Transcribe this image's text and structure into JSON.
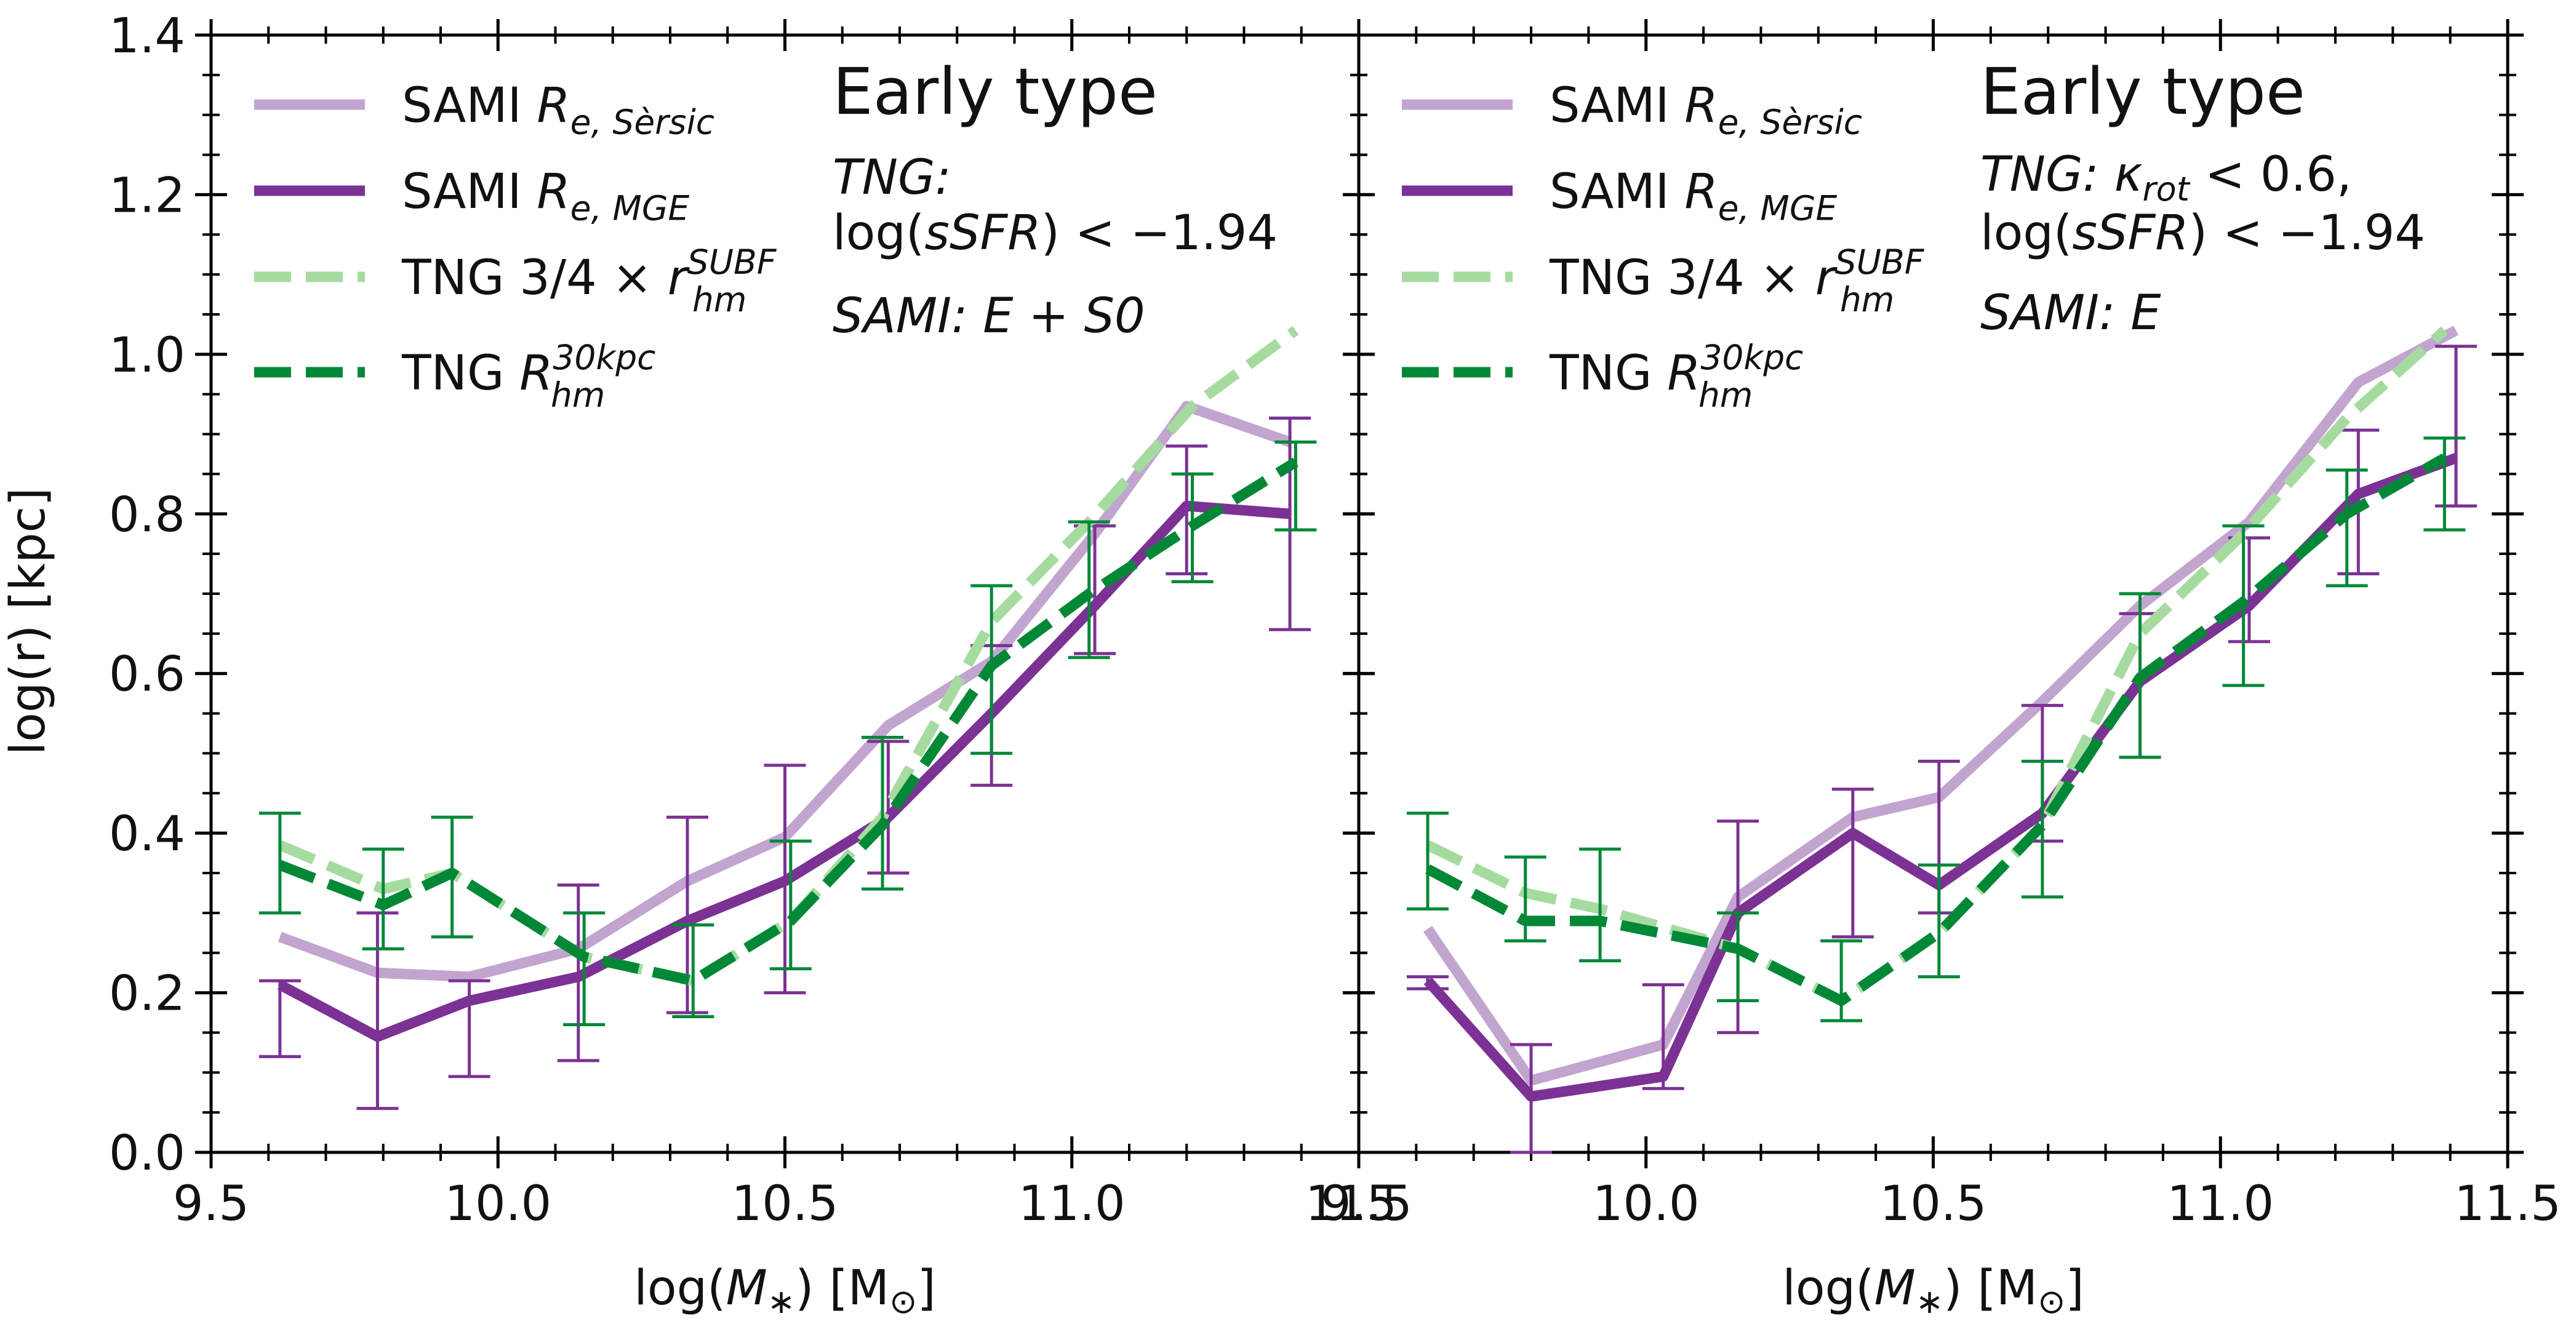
{
  "colors": {
    "sami_sersic": "#c2a5cf",
    "sami_mge": "#7b3294",
    "tng_subf": "#a6dba0",
    "tng_30kpc": "#008837",
    "axis": "#000000"
  },
  "shared": {
    "ylabel": "log(r) [kpc]",
    "xlabel": "log(M∗) [M⊙]",
    "legend": {
      "sami_sersic": "SAMI R_{e, Sèrsic}",
      "sami_mge": "SAMI R_{e, MGE}",
      "tng_subf": "TNG 3/4 × r_{hm}^{SUBF}",
      "tng_30kpc": "TNG R_{hm}^{30kpc}"
    }
  },
  "chart_data": [
    {
      "type": "line",
      "title": "Early type",
      "annotation": [
        "TNG:",
        "log(sSFR) < −1.94",
        "SAMI: E + S0"
      ],
      "xlim": [
        9.5,
        11.5
      ],
      "ylim": [
        0.0,
        1.4
      ],
      "xticks": [
        "9.5",
        "10.0",
        "10.5",
        "11.0",
        "11.5"
      ],
      "yticks": [
        "0.0",
        "0.2",
        "0.4",
        "0.6",
        "0.8",
        "1.0",
        "1.2",
        "1.4"
      ],
      "series": [
        {
          "key": "sami_sersic",
          "name": "SAMI R_{e, Sèrsic}",
          "style": "solid",
          "x": [
            9.62,
            9.79,
            9.95,
            10.14,
            10.33,
            10.5,
            10.68,
            10.86,
            11.04,
            11.2,
            11.38
          ],
          "y": [
            0.27,
            0.225,
            0.22,
            0.255,
            0.34,
            0.395,
            0.535,
            0.615,
            0.775,
            0.935,
            0.89
          ]
        },
        {
          "key": "sami_mge",
          "name": "SAMI R_{e, MGE}",
          "style": "solid",
          "x": [
            9.62,
            9.79,
            9.95,
            10.14,
            10.33,
            10.5,
            10.68,
            10.86,
            11.04,
            11.2,
            11.38
          ],
          "y": [
            0.21,
            0.145,
            0.19,
            0.22,
            0.29,
            0.34,
            0.42,
            0.55,
            0.685,
            0.81,
            0.8
          ],
          "err_low": [
            0.12,
            0.055,
            0.095,
            0.115,
            0.175,
            0.2,
            0.35,
            0.46,
            0.625,
            0.725,
            0.655
          ],
          "err_high": [
            0.215,
            0.3,
            0.215,
            0.335,
            0.42,
            0.485,
            0.515,
            0.635,
            0.785,
            0.885,
            0.92
          ]
        },
        {
          "key": "tng_subf",
          "name": "TNG 3/4 × r_{hm}^{SUBF}",
          "style": "dashed",
          "x": [
            9.62,
            9.8,
            9.92,
            10.15,
            10.34,
            10.51,
            10.67,
            10.86,
            11.03,
            11.21,
            11.39
          ],
          "y": [
            0.385,
            0.33,
            0.35,
            0.245,
            0.215,
            0.29,
            0.42,
            0.665,
            0.79,
            0.935,
            1.03
          ]
        },
        {
          "key": "tng_30kpc",
          "name": "TNG R_{hm}^{30kpc}",
          "style": "dashed",
          "x": [
            9.62,
            9.8,
            9.92,
            10.15,
            10.34,
            10.51,
            10.67,
            10.86,
            11.03,
            11.21,
            11.39
          ],
          "y": [
            0.36,
            0.31,
            0.35,
            0.245,
            0.215,
            0.29,
            0.41,
            0.61,
            0.7,
            0.785,
            0.865
          ],
          "err_low": [
            0.3,
            0.255,
            0.27,
            0.16,
            0.17,
            0.23,
            0.33,
            0.5,
            0.62,
            0.715,
            0.78
          ],
          "err_high": [
            0.425,
            0.38,
            0.42,
            0.3,
            0.285,
            0.39,
            0.52,
            0.71,
            0.79,
            0.85,
            0.89
          ]
        }
      ]
    },
    {
      "type": "line",
      "title": "Early type",
      "annotation": [
        "TNG: κ_rot < 0.6,",
        "log(sSFR) < −1.94",
        "SAMI: E"
      ],
      "xlim": [
        9.5,
        11.5
      ],
      "ylim": [
        0.0,
        1.4
      ],
      "xticks": [
        "9.5",
        "10.0",
        "10.5",
        "11.0",
        "11.5"
      ],
      "yticks": [],
      "series": [
        {
          "key": "sami_sersic",
          "name": "SAMI R_{e, Sèrsic}",
          "style": "solid",
          "x": [
            9.62,
            9.8,
            10.03,
            10.16,
            10.36,
            10.51,
            10.69,
            10.86,
            11.05,
            11.24,
            11.41
          ],
          "y": [
            0.28,
            0.09,
            0.135,
            0.32,
            0.42,
            0.445,
            0.565,
            0.685,
            0.79,
            0.965,
            1.03
          ]
        },
        {
          "key": "sami_mge",
          "name": "SAMI R_{e, MGE}",
          "style": "solid",
          "x": [
            9.62,
            9.8,
            10.03,
            10.16,
            10.36,
            10.51,
            10.69,
            10.86,
            11.05,
            11.24,
            11.41
          ],
          "y": [
            0.215,
            0.07,
            0.095,
            0.3,
            0.4,
            0.335,
            0.425,
            0.59,
            0.685,
            0.825,
            0.87
          ],
          "err_low": [
            0.205,
            0.0,
            0.08,
            0.15,
            0.27,
            0.3,
            0.39,
            0.495,
            0.64,
            0.725,
            0.81
          ],
          "err_high": [
            0.22,
            0.135,
            0.21,
            0.415,
            0.455,
            0.49,
            0.56,
            0.675,
            0.77,
            0.905,
            1.01
          ]
        },
        {
          "key": "tng_subf",
          "name": "TNG 3/4 × r_{hm}^{SUBF}",
          "style": "dashed",
          "x": [
            9.62,
            9.79,
            9.92,
            10.16,
            10.34,
            10.51,
            10.69,
            10.86,
            11.04,
            11.22,
            11.39
          ],
          "y": [
            0.385,
            0.325,
            0.305,
            0.255,
            0.19,
            0.275,
            0.41,
            0.65,
            0.775,
            0.92,
            1.03
          ]
        },
        {
          "key": "tng_30kpc",
          "name": "TNG R_{hm}^{30kpc}",
          "style": "dashed",
          "x": [
            9.62,
            9.79,
            9.92,
            10.16,
            10.34,
            10.51,
            10.69,
            10.86,
            11.04,
            11.22,
            11.39
          ],
          "y": [
            0.355,
            0.29,
            0.29,
            0.255,
            0.19,
            0.275,
            0.41,
            0.595,
            0.69,
            0.8,
            0.87
          ],
          "err_low": [
            0.305,
            0.265,
            0.24,
            0.19,
            0.165,
            0.22,
            0.32,
            0.495,
            0.585,
            0.71,
            0.78
          ],
          "err_high": [
            0.425,
            0.37,
            0.38,
            0.3,
            0.265,
            0.36,
            0.49,
            0.7,
            0.785,
            0.855,
            0.895
          ]
        }
      ]
    }
  ]
}
